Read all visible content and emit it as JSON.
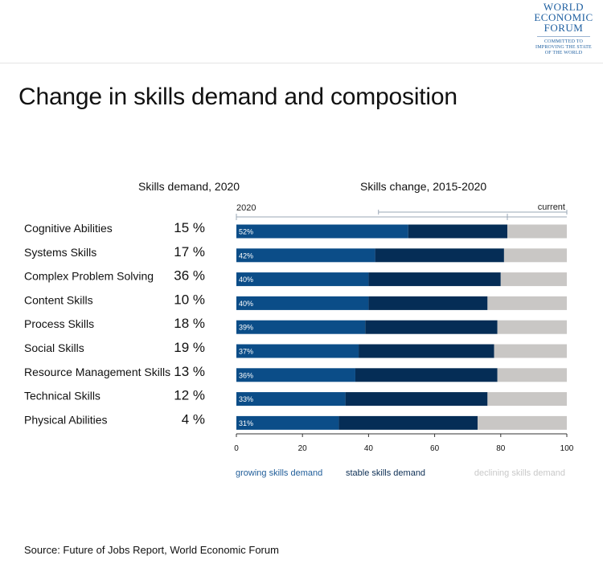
{
  "title": "Change in skills demand and composition",
  "logo": {
    "lines": [
      "WORLD",
      "ECONOMIC",
      "FORUM"
    ],
    "tagline": [
      "COMMITTED TO",
      "IMPROVING THE STATE",
      "OF THE WORLD"
    ]
  },
  "source": "Source: Future of Jobs Report, World Economic Forum",
  "colors": {
    "growing": "#0b4d88",
    "stable": "#052d56",
    "declining": "#c9c7c5",
    "growing_label": "#1f5d99",
    "stable_label": "#0d2f55",
    "declining_label": "#c9c9c9",
    "timeline": "#9aa7b6"
  },
  "chart_data": {
    "type": "bar",
    "orientation": "horizontal",
    "stacked": true,
    "left_table_title": "Skills demand,  2020",
    "right_chart_title": "Skills change, 2015-2020",
    "timeline_labels": {
      "start": "2020",
      "end": "current"
    },
    "categories": [
      "Cognitive Abilities",
      "Systems Skills",
      "Complex Problem Solving",
      "Content Skills",
      "Process Skills",
      "Social Skills",
      "Resource Management Skills",
      "Technical Skills",
      "Physical Abilities"
    ],
    "demand_2020": [
      "15 %",
      "17 %",
      "36 %",
      "10 %",
      "18 %",
      "19 %",
      "13 %",
      "12 %",
      "4 %"
    ],
    "series": [
      {
        "name": "growing skills demand",
        "values": [
          52,
          42,
          40,
          40,
          39,
          37,
          36,
          33,
          31
        ],
        "data_labels": [
          "52%",
          "42%",
          "40%",
          "40%",
          "39%",
          "37%",
          "36%",
          "33%",
          "31%"
        ]
      },
      {
        "name": "stable skills demand",
        "values": [
          30,
          39,
          40,
          36,
          40,
          41,
          43,
          43,
          42
        ]
      },
      {
        "name": "declining skills demand",
        "values": [
          18,
          19,
          20,
          24,
          21,
          22,
          21,
          24,
          27
        ]
      }
    ],
    "xlim": [
      0,
      100
    ],
    "xticks": [
      "0",
      "20",
      "40",
      "60",
      "80",
      "100"
    ]
  }
}
